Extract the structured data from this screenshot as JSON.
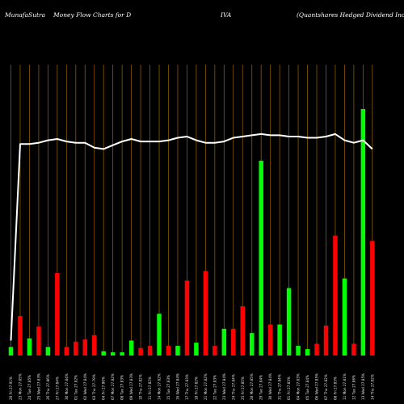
{
  "header": {
    "site": "MunafaSutra",
    "chart_name": "Money Flow  Charts for D",
    "ticker_tail": "IVA",
    "company": "(Quantshares Hedged Dividend Inc) Mi"
  },
  "colors": {
    "background": "#000000",
    "gridline": "#8a5a00",
    "up_bar": "#00ff00",
    "down_bar": "#ff0000",
    "price_line": "#ffffff"
  },
  "chart_data": {
    "type": "bar",
    "title": "MunafaSutra  Money Flow  Charts for DIVA",
    "subtitle": "(Quantshares Hedged Dividend Inc) Mi",
    "ylim": [
      0,
      100
    ],
    "price_ylim": [
      0,
      100
    ],
    "categories": [
      "20 Fri 27.91%",
      "23 Mon 27.85%",
      "24 Tue 27.85%",
      "25 Wed 27.83%",
      "26 Thu 27.86%",
      "27 Fri 27.84%",
      "30 Mon 27.84%",
      "01 Tue 27.82%",
      "02 Wed 27.84%",
      "03 Thu 27.79%",
      "04 Fri 27.80%",
      "07 Mon 27.82%",
      "08 Tue 27.83%",
      "09 Wed 27.83%",
      "10 Thu 27.82%",
      "11 Fri 27.82%",
      "14 Mon 27.82%",
      "15 Tue 27.83%",
      "16 Wed 27.84%",
      "17 Thu 27.83%",
      "18 Fri 27.82%",
      "21 Mon 27.82%",
      "22 Tue 27.83%",
      "23 Wed 27.84%",
      "24 Thu 27.84%",
      "25 Fri 27.85%",
      "28 Mon 27.85%",
      "29 Tue 27.84%",
      "30 Wed 27.84%",
      "31 Thu 27.84%",
      "01 Fri 27.83%",
      "04 Mon 27.83%",
      "05 Tue 27.84%",
      "06 Wed 27.85%",
      "07 Thu 27.82%",
      "08 Fri 27.83%",
      "11 Mon 27.81%",
      "12 Tue 27.86%",
      "13 Wed 27.85%",
      "14 Thu 27.82%"
    ],
    "bar_direction": [
      "up",
      "down",
      "up",
      "down",
      "up",
      "down",
      "down",
      "down",
      "down",
      "down",
      "up",
      "up",
      "up",
      "up",
      "down",
      "down",
      "up",
      "down",
      "up",
      "down",
      "up",
      "down",
      "down",
      "up",
      "down",
      "down",
      "up",
      "up",
      "down",
      "up",
      "up",
      "up",
      "up",
      "down",
      "down",
      "down",
      "up",
      "down",
      "up",
      "down"
    ],
    "bar_values": [
      4,
      18.5,
      8,
      13.5,
      4,
      38.5,
      4,
      6.5,
      7.5,
      9.5,
      2,
      1.5,
      1.5,
      7,
      3.5,
      4.5,
      19.5,
      4.5,
      4.5,
      35,
      6,
      39.5,
      4.5,
      12.5,
      12.5,
      23,
      10.5,
      91,
      14.5,
      14.5,
      31.5,
      4.5,
      3,
      5.5,
      14,
      56,
      36,
      5.5,
      121,
      53.5
    ],
    "price_values": [
      6,
      85,
      85,
      85.5,
      86.5,
      87,
      86,
      85.5,
      85.5,
      83.5,
      83,
      84.5,
      86,
      87,
      86,
      86,
      86,
      86.5,
      87.5,
      88,
      86.5,
      85.5,
      85.5,
      86,
      87.5,
      88,
      88.5,
      89,
      88.5,
      88.5,
      88,
      88,
      87.5,
      87.5,
      88,
      89,
      86.5,
      85.5,
      86.5,
      83
    ]
  }
}
